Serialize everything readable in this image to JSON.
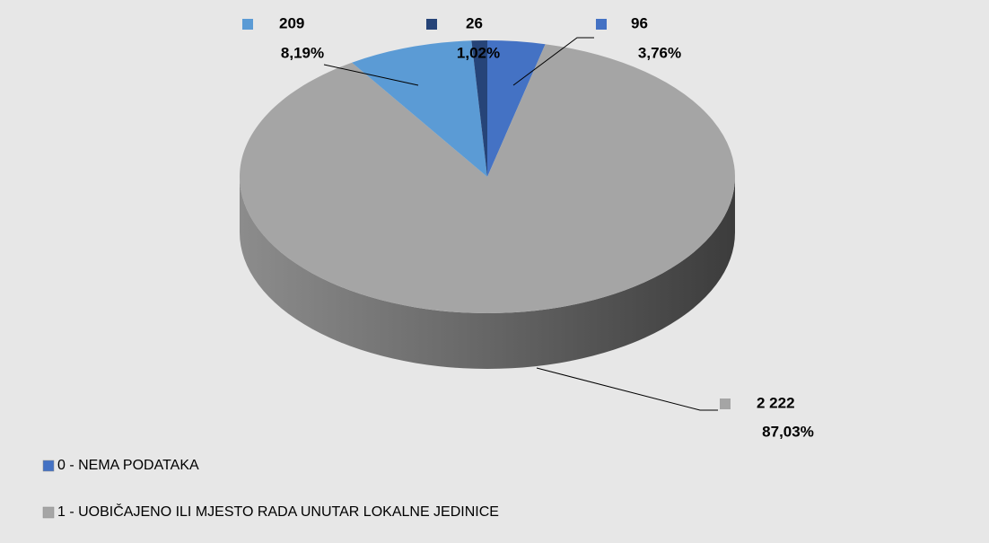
{
  "chart_data": {
    "type": "pie3d",
    "categories": [
      "0 - NEMA PODATAKA",
      "1 - UOBIČAJENO ILI MJESTO RADA UNUTAR LOKALNE JEDINICE",
      null,
      null
    ],
    "values": [
      96,
      2222,
      209,
      26
    ],
    "value_labels": [
      "96",
      "2 222",
      "209",
      "26"
    ],
    "percents": [
      3.76,
      87.03,
      8.19,
      1.02
    ],
    "percent_labels": [
      "3,76%",
      "87,03%",
      "8,19%",
      "1,02%"
    ],
    "colors": [
      "#4472c4",
      "#a5a5a5",
      "#5b9bd5",
      "#264478"
    ],
    "legend": "bottom-left"
  }
}
